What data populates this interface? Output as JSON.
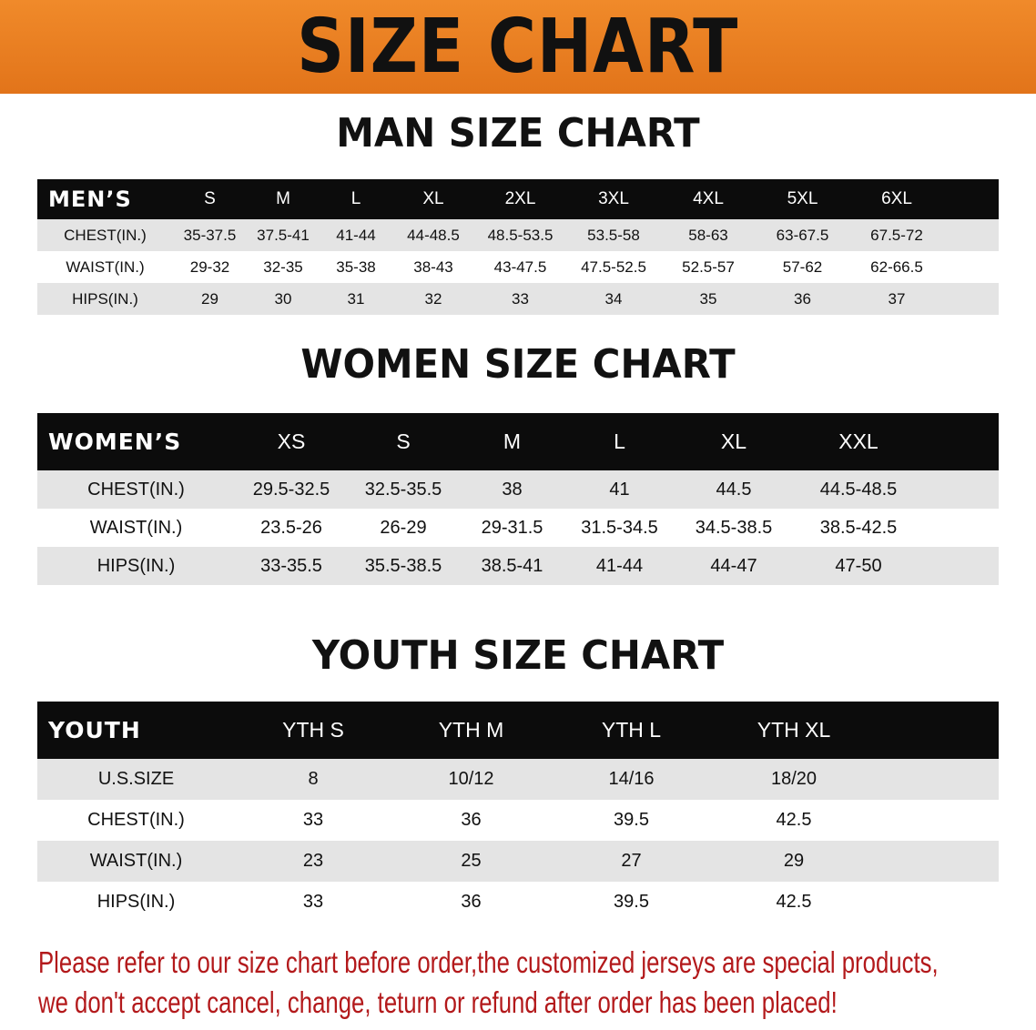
{
  "banner": {
    "title": "SIZE CHART",
    "color": "#e97c20"
  },
  "men": {
    "title": "MAN SIZE CHART",
    "header": [
      "MEN’S",
      "S",
      "M",
      "L",
      "XL",
      "2XL",
      "3XL",
      "4XL",
      "5XL",
      "6XL"
    ],
    "rows": [
      [
        "CHEST(IN.)",
        "35-37.5",
        "37.5-41",
        "41-44",
        "44-48.5",
        "48.5-53.5",
        "53.5-58",
        "58-63",
        "63-67.5",
        "67.5-72"
      ],
      [
        "WAIST(IN.)",
        "29-32",
        "32-35",
        "35-38",
        "38-43",
        "43-47.5",
        "47.5-52.5",
        "52.5-57",
        "57-62",
        "62-66.5"
      ],
      [
        "HIPS(IN.)",
        "29",
        "30",
        "31",
        "32",
        "33",
        "34",
        "35",
        "36",
        "37"
      ]
    ]
  },
  "women": {
    "title": "WOMEN SIZE CHART",
    "header": [
      "WOMEN’S",
      "XS",
      "S",
      "M",
      "L",
      "XL",
      "XXL"
    ],
    "rows": [
      [
        "CHEST(IN.)",
        "29.5-32.5",
        "32.5-35.5",
        "38",
        "41",
        "44.5",
        "44.5-48.5"
      ],
      [
        "WAIST(IN.)",
        "23.5-26",
        "26-29",
        "29-31.5",
        "31.5-34.5",
        "34.5-38.5",
        "38.5-42.5"
      ],
      [
        "HIPS(IN.)",
        "33-35.5",
        "35.5-38.5",
        "38.5-41",
        "41-44",
        "44-47",
        "47-50"
      ]
    ]
  },
  "youth": {
    "title": "YOUTH SIZE CHART",
    "header": [
      "YOUTH",
      "YTH S",
      "YTH M",
      "YTH L",
      "YTH XL"
    ],
    "rows": [
      [
        "U.S.SIZE",
        "8",
        "10/12",
        "14/16",
        "18/20"
      ],
      [
        "CHEST(IN.)",
        "33",
        "36",
        "39.5",
        "42.5"
      ],
      [
        "WAIST(IN.)",
        "23",
        "25",
        "27",
        "29"
      ],
      [
        "HIPS(IN.)",
        "33",
        "36",
        "39.5",
        "42.5"
      ]
    ]
  },
  "note": {
    "line1": "Please refer to our size chart before order,the customized jerseys are special products,",
    "line2": "we don't accept cancel, change, teturn or refund after order has been placed!",
    "color": "#b3191b"
  }
}
